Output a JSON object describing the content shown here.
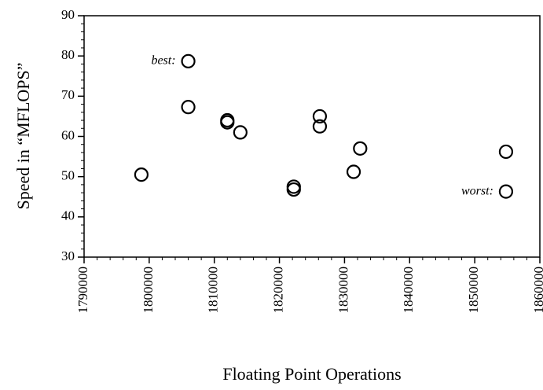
{
  "chart_data": {
    "type": "scatter",
    "xlabel": "Floating Point Operations",
    "ylabel": "Speed in “MFLOPS”",
    "x": [
      1798800,
      1806000,
      1806000,
      1812000,
      1812000,
      1814000,
      1822200,
      1822200,
      1826200,
      1826200,
      1831400,
      1832400,
      1854800,
      1854800
    ],
    "values": [
      50.5,
      78.7,
      67.3,
      64,
      63.5,
      61,
      47.5,
      46.8,
      65,
      62.5,
      51.2,
      57,
      56.2,
      46.3
    ],
    "color": "#000000",
    "xlim": [
      1790000,
      1860000
    ],
    "xticks": [
      1790000,
      1800000,
      1810000,
      1820000,
      1830000,
      1840000,
      1850000,
      1860000
    ],
    "ylim": [
      30,
      90
    ],
    "yticks": [
      30,
      40,
      50,
      60,
      70,
      80,
      90
    ],
    "annotations": [
      {
        "text": "best:",
        "x": 1806000,
        "y": 78.7
      },
      {
        "text": "worst:",
        "x": 1854800,
        "y": 46.3
      }
    ]
  }
}
